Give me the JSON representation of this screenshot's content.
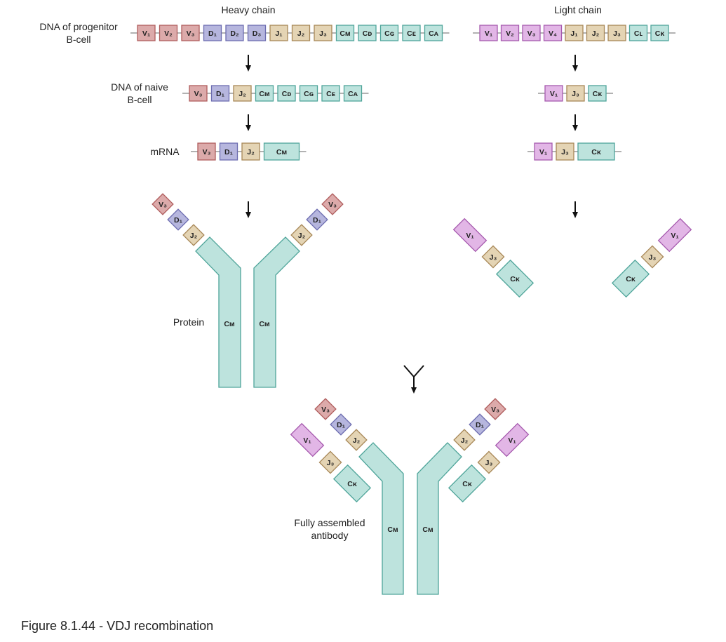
{
  "headings": {
    "heavy": "Heavy chain",
    "light": "Light chain"
  },
  "labels": {
    "progenitor_line1": "DNA of progenitor",
    "progenitor_line2": "B-cell",
    "naive_line1": "DNA of naive",
    "naive_line2": "B-cell",
    "mrna": "mRNA",
    "protein": "Protein",
    "assembled_line1": "Fully assembled",
    "assembled_line2": "antibody"
  },
  "caption": "Figure 8.1.44 - VDJ recombination",
  "segment_colors": {
    "V": "#dcaaaa",
    "D": "#b6b6de",
    "J": "#e4d4b4",
    "C": "#bde3dd",
    "VL": "#e2b6e6"
  },
  "heavy_chain": {
    "progenitor": [
      {
        "t": "V",
        "label": "V₁"
      },
      {
        "t": "V",
        "label": "V₂"
      },
      {
        "t": "V",
        "label": "V₃"
      },
      {
        "t": "D",
        "label": "D₁"
      },
      {
        "t": "D",
        "label": "D₂"
      },
      {
        "t": "D",
        "label": "D₃"
      },
      {
        "t": "J",
        "label": "J₁"
      },
      {
        "t": "J",
        "label": "J₂"
      },
      {
        "t": "J",
        "label": "J₃"
      },
      {
        "t": "C",
        "label": "Cᴍ"
      },
      {
        "t": "C",
        "label": "Cᴅ"
      },
      {
        "t": "C",
        "label": "Cɢ"
      },
      {
        "t": "C",
        "label": "Cᴇ"
      },
      {
        "t": "C",
        "label": "Cᴀ"
      }
    ],
    "naive": [
      {
        "t": "V",
        "label": "V₃"
      },
      {
        "t": "D",
        "label": "D₁"
      },
      {
        "t": "J",
        "label": "J₂"
      },
      {
        "t": "C",
        "label": "Cᴍ"
      },
      {
        "t": "C",
        "label": "Cᴅ"
      },
      {
        "t": "C",
        "label": "Cɢ"
      },
      {
        "t": "C",
        "label": "Cᴇ"
      },
      {
        "t": "C",
        "label": "Cᴀ"
      }
    ],
    "mrna": [
      {
        "t": "V",
        "label": "V₃"
      },
      {
        "t": "D",
        "label": "D₁"
      },
      {
        "t": "J",
        "label": "J₂"
      },
      {
        "t": "C",
        "label": "Cᴍ"
      }
    ],
    "protein": {
      "v": "V₃",
      "d": "D₁",
      "j": "J₂",
      "c": "Cᴍ"
    }
  },
  "light_chain": {
    "progenitor": [
      {
        "t": "VL",
        "label": "V₁"
      },
      {
        "t": "VL",
        "label": "V₂"
      },
      {
        "t": "VL",
        "label": "V₃"
      },
      {
        "t": "VL",
        "label": "V₄"
      },
      {
        "t": "J",
        "label": "J₁"
      },
      {
        "t": "J",
        "label": "J₂"
      },
      {
        "t": "J",
        "label": "J₃"
      },
      {
        "t": "C",
        "label": "Cʟ"
      },
      {
        "t": "C",
        "label": "Cᴋ"
      }
    ],
    "naive": [
      {
        "t": "VL",
        "label": "V₁"
      },
      {
        "t": "J",
        "label": "J₃"
      },
      {
        "t": "C",
        "label": "Cᴋ"
      }
    ],
    "mrna": [
      {
        "t": "VL",
        "label": "V₁"
      },
      {
        "t": "J",
        "label": "J₃"
      },
      {
        "t": "C",
        "label": "Cᴋ"
      }
    ],
    "protein": {
      "v": "V₁",
      "j": "J₃",
      "c": "Cᴋ"
    }
  }
}
